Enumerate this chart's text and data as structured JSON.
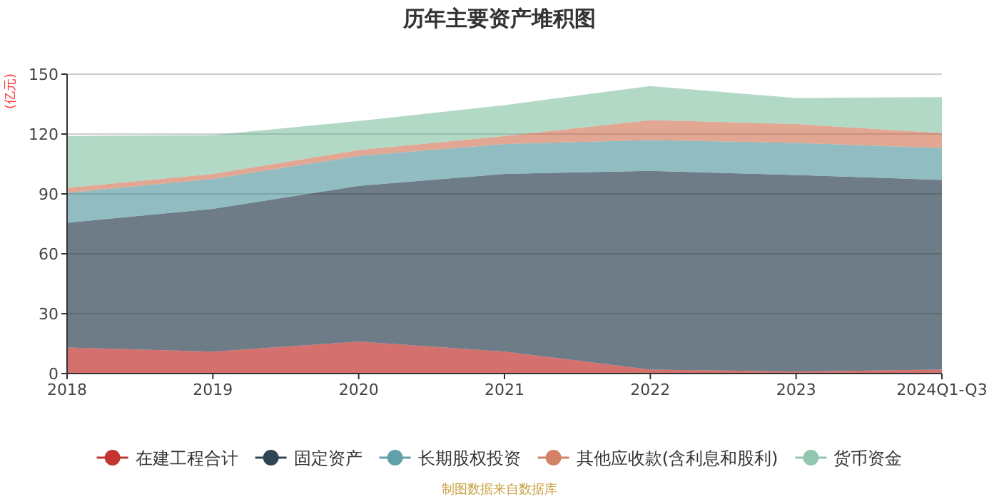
{
  "chart_data": {
    "type": "area",
    "stacked": true,
    "title": "历年主要资产堆积图",
    "ylabel": "(亿元)",
    "categories": [
      "2018",
      "2019",
      "2020",
      "2021",
      "2022",
      "2023",
      "2024Q1-Q3"
    ],
    "series": [
      {
        "name": "在建工程合计",
        "color": "#c23531",
        "values": [
          13,
          11,
          16,
          11,
          2,
          1,
          2
        ]
      },
      {
        "name": "固定资产",
        "color": "#2f4554",
        "values": [
          62.5,
          71.5,
          78,
          89,
          99.5,
          98.5,
          95
        ]
      },
      {
        "name": "长期股权投资",
        "color": "#61a0a8",
        "values": [
          15,
          15,
          15,
          15,
          15.5,
          16,
          16
        ]
      },
      {
        "name": "其他应收款(含利息和股利)",
        "color": "#d48265",
        "values": [
          2.5,
          2.5,
          3,
          4,
          10,
          9.5,
          7.5
        ]
      },
      {
        "name": "货币资金",
        "color": "#91c7ae",
        "values": [
          26,
          19.5,
          14.5,
          15.5,
          17,
          13,
          18
        ]
      }
    ],
    "ylim": [
      0,
      150
    ],
    "yticks": [
      0,
      30,
      60,
      90,
      120,
      150
    ],
    "grid": "y",
    "legend": "bottom",
    "annotations": [
      "制图数据来自数据库"
    ]
  }
}
